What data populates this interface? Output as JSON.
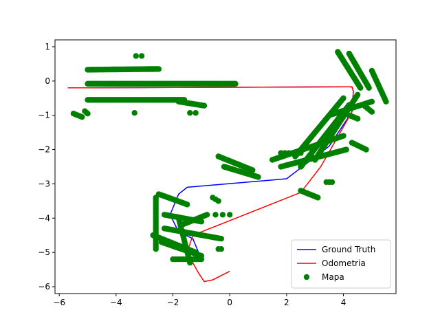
{
  "chart_data": {
    "type": "line",
    "title": "",
    "xlabel": "",
    "ylabel": "",
    "xlim": [
      -6.15,
      5.85
    ],
    "ylim": [
      -6.2,
      1.2
    ],
    "xticks": [
      -6,
      -4,
      -2,
      0,
      2,
      4
    ],
    "yticks": [
      1,
      0,
      -1,
      -2,
      -3,
      -4,
      -5,
      -6
    ],
    "xtick_labels": [
      "−6",
      "−4",
      "−2",
      "0",
      "2",
      "4"
    ],
    "ytick_labels": [
      "1",
      "0",
      "−1",
      "−2",
      "−3",
      "−4",
      "−5",
      "−6"
    ],
    "grid": false,
    "legend_position": "lower right",
    "series": [
      {
        "name": "Ground Truth",
        "kind": "line",
        "color": "#0000ff",
        "x": [
          -5.7,
          4.3,
          4.35,
          4.3,
          3.5,
          2.0,
          -1.5,
          -1.8,
          -2.1,
          -1.8,
          -1.3,
          -1.0
        ],
        "y": [
          -0.2,
          -0.17,
          -0.3,
          -0.9,
          -1.9,
          -2.85,
          -3.1,
          -3.3,
          -3.9,
          -4.4,
          -4.6,
          -5.2
        ]
      },
      {
        "name": "Odometria",
        "kind": "line",
        "color": "#ff0000",
        "x": [
          -5.7,
          4.3,
          4.35,
          4.3,
          3.2,
          2.5,
          -1.3,
          -1.5,
          -1.1,
          -0.9,
          -0.6,
          0.0
        ],
        "y": [
          -0.2,
          -0.17,
          -0.3,
          -0.9,
          -2.5,
          -3.25,
          -4.5,
          -5.0,
          -5.6,
          -5.85,
          -5.8,
          -5.55
        ]
      },
      {
        "name": "Mapa",
        "kind": "scatter",
        "color": "#008000",
        "clusters": [
          {
            "from": [
              -5.0,
              0.33
            ],
            "to": [
              -2.5,
              0.35
            ],
            "n": 70
          },
          {
            "from": [
              -5.0,
              -0.08
            ],
            "to": [
              0.2,
              -0.08
            ],
            "n": 140
          },
          {
            "from": [
              -5.0,
              -0.55
            ],
            "to": [
              -1.6,
              -0.55
            ],
            "n": 90
          },
          {
            "from": [
              -1.8,
              -0.6
            ],
            "to": [
              -0.9,
              -0.72
            ],
            "n": 18
          },
          {
            "from": [
              -5.5,
              -0.95
            ],
            "to": [
              -5.2,
              -1.05
            ],
            "n": 5
          },
          {
            "from": [
              -5.1,
              -0.88
            ],
            "to": [
              -5.0,
              -0.95
            ],
            "n": 3
          },
          {
            "from": [
              -3.3,
              0.73
            ],
            "to": [
              -3.1,
              0.73
            ],
            "n": 2
          },
          {
            "from": [
              -3.35,
              -0.93
            ],
            "to": [
              -3.3,
              -0.93
            ],
            "n": 1
          },
          {
            "from": [
              -1.4,
              -0.93
            ],
            "to": [
              -1.2,
              -0.93
            ],
            "n": 2
          },
          {
            "from": [
              -0.4,
              -2.2
            ],
            "to": [
              0.8,
              -2.6
            ],
            "n": 30
          },
          {
            "from": [
              -0.2,
              -2.5
            ],
            "to": [
              1.0,
              -2.8
            ],
            "n": 30
          },
          {
            "from": [
              1.5,
              -2.3
            ],
            "to": [
              4.0,
              -1.6
            ],
            "n": 45
          },
          {
            "from": [
              1.8,
              -2.5
            ],
            "to": [
              4.1,
              -2.0
            ],
            "n": 45
          },
          {
            "from": [
              3.5,
              -1.0
            ],
            "to": [
              5.0,
              -0.6
            ],
            "n": 30
          },
          {
            "from": [
              2.3,
              -2.2
            ],
            "to": [
              4.0,
              -0.5
            ],
            "n": 50
          },
          {
            "from": [
              2.5,
              -2.5
            ],
            "to": [
              4.2,
              -0.7
            ],
            "n": 50
          },
          {
            "from": [
              3.0,
              -2.3
            ],
            "to": [
              4.5,
              -0.4
            ],
            "n": 45
          },
          {
            "from": [
              3.8,
              0.85
            ],
            "to": [
              4.6,
              -0.2
            ],
            "n": 40
          },
          {
            "from": [
              4.2,
              0.8
            ],
            "to": [
              4.9,
              -0.2
            ],
            "n": 35
          },
          {
            "from": [
              5.0,
              0.3
            ],
            "to": [
              5.5,
              -0.6
            ],
            "n": 20
          },
          {
            "from": [
              1.8,
              -2.1
            ],
            "to": [
              2.5,
              -2.1
            ],
            "n": 6
          },
          {
            "from": [
              2.5,
              -3.2
            ],
            "to": [
              3.1,
              -3.4
            ],
            "n": 15
          },
          {
            "from": [
              3.4,
              -2.95
            ],
            "to": [
              3.6,
              -2.95
            ],
            "n": 3
          },
          {
            "from": [
              4.7,
              -0.7
            ],
            "to": [
              5.0,
              -0.9
            ],
            "n": 5
          },
          {
            "from": [
              4.2,
              -1.0
            ],
            "to": [
              4.5,
              -1.1
            ],
            "n": 5
          },
          {
            "from": [
              4.3,
              -1.8
            ],
            "to": [
              4.8,
              -2.0
            ],
            "n": 8
          },
          {
            "from": [
              -2.6,
              -3.4
            ],
            "to": [
              -2.6,
              -4.9
            ],
            "n": 25
          },
          {
            "from": [
              -2.5,
              -3.3
            ],
            "to": [
              -1.5,
              -3.6
            ],
            "n": 20
          },
          {
            "from": [
              -2.7,
              -4.5
            ],
            "to": [
              -1.2,
              -5.0
            ],
            "n": 35
          },
          {
            "from": [
              -2.3,
              -3.9
            ],
            "to": [
              -1.0,
              -4.1
            ],
            "n": 35
          },
          {
            "from": [
              -2.3,
              -4.3
            ],
            "to": [
              -0.3,
              -4.6
            ],
            "n": 35
          },
          {
            "from": [
              -2.4,
              -4.7
            ],
            "to": [
              -1.0,
              -5.1
            ],
            "n": 25
          },
          {
            "from": [
              -1.8,
              -4.0
            ],
            "to": [
              -1.4,
              -5.3
            ],
            "n": 20
          },
          {
            "from": [
              -1.7,
              -4.2
            ],
            "to": [
              -0.8,
              -3.9
            ],
            "n": 15
          },
          {
            "from": [
              -2.0,
              -5.2
            ],
            "to": [
              -1.0,
              -5.2
            ],
            "n": 12
          },
          {
            "from": [
              -0.5,
              -3.9
            ],
            "to": [
              0.0,
              -3.9
            ],
            "n": 3
          },
          {
            "from": [
              -0.6,
              -3.4
            ],
            "to": [
              -0.4,
              -3.5
            ],
            "n": 3
          },
          {
            "from": [
              -0.4,
              -4.9
            ],
            "to": [
              -0.3,
              -4.9
            ],
            "n": 2
          }
        ]
      }
    ]
  }
}
